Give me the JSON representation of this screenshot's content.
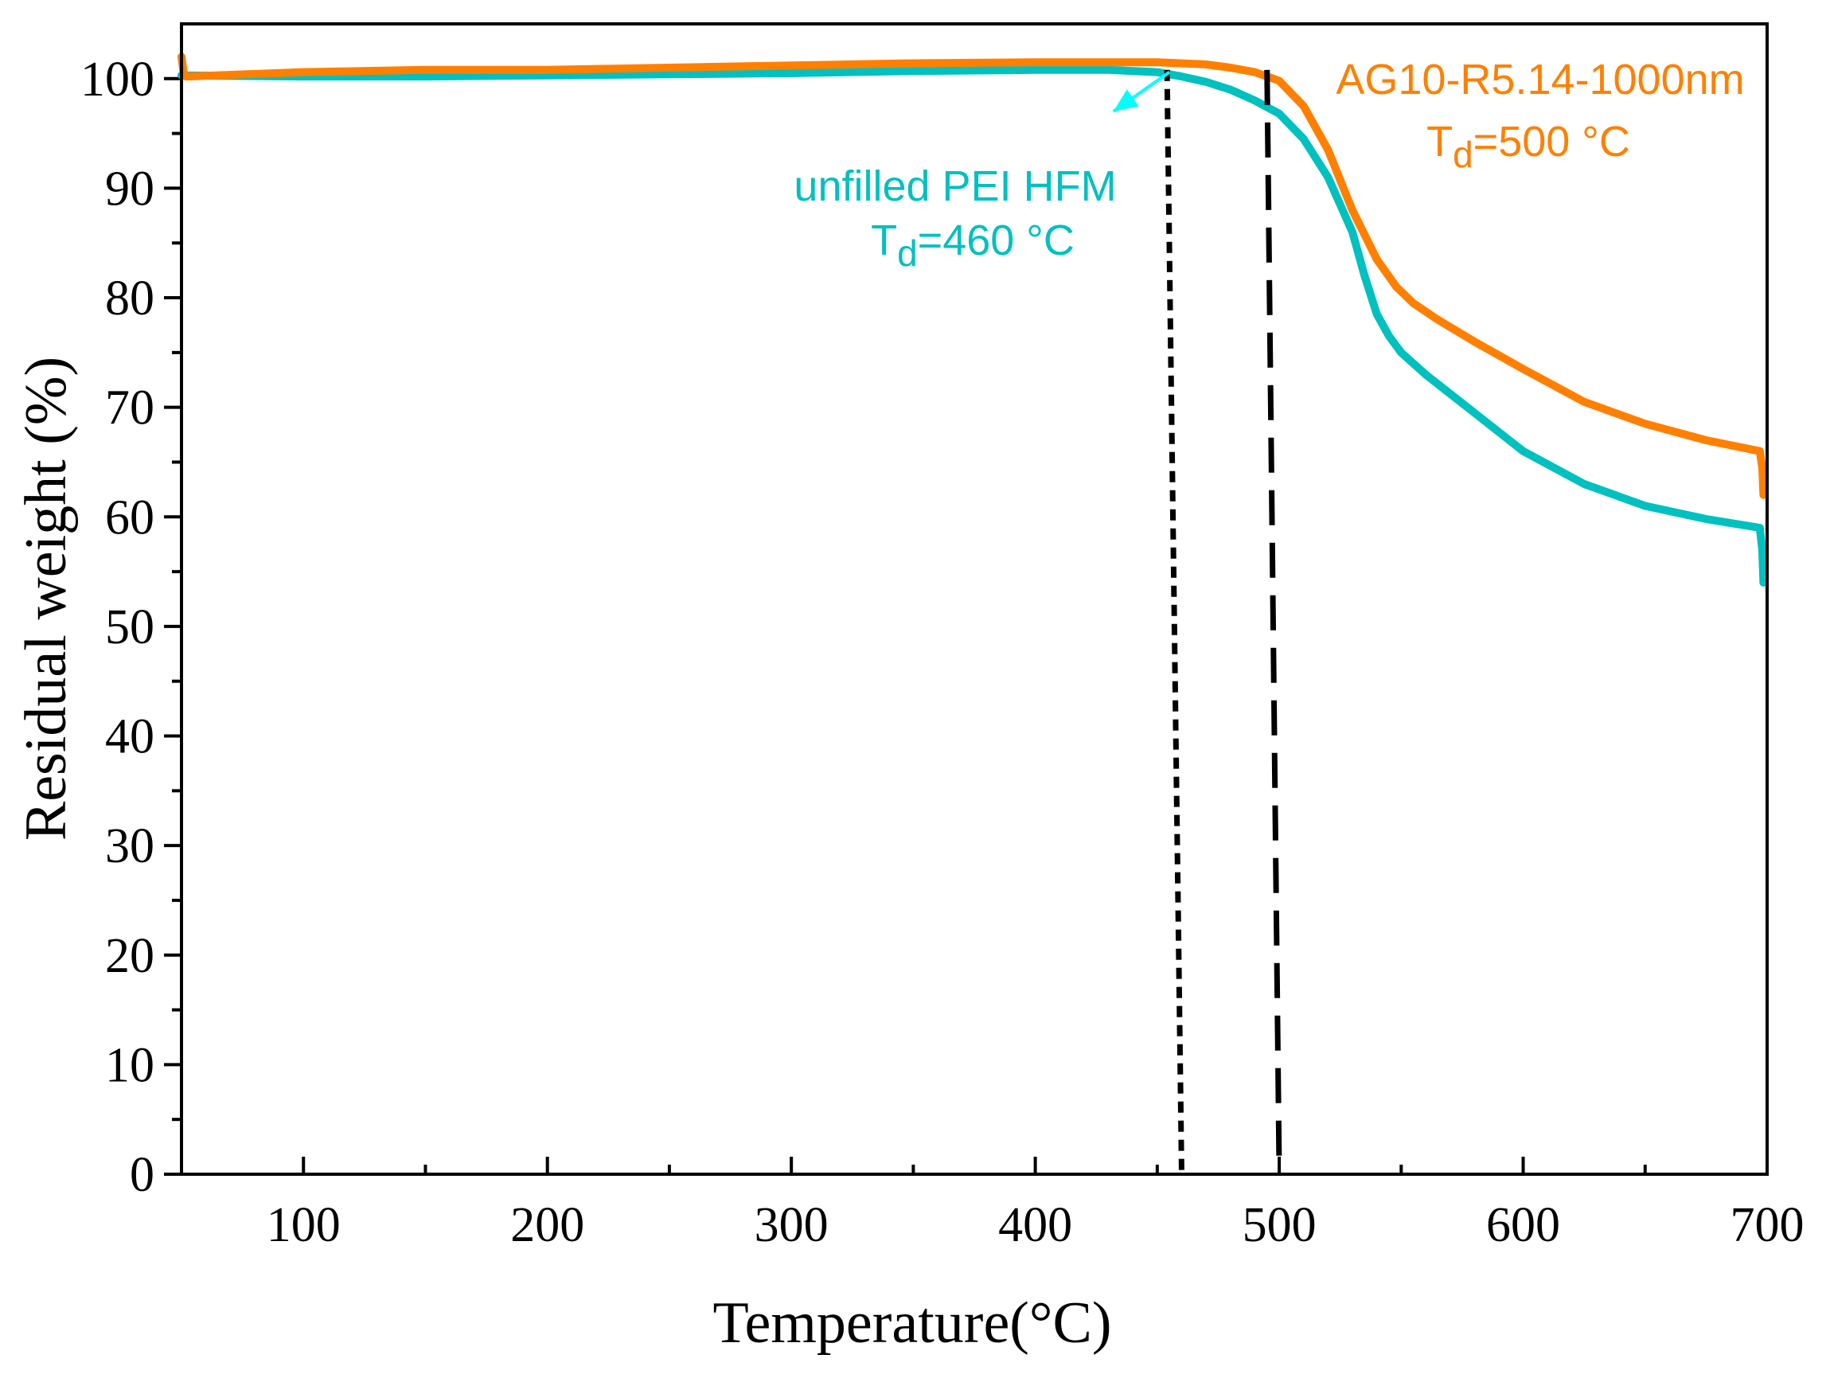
{
  "chart_data": {
    "type": "line",
    "title": "",
    "xlabel": "Temperature(°C)",
    "ylabel": "Residual weight (%)",
    "xlim": [
      50,
      700
    ],
    "ylim": [
      0,
      105
    ],
    "x_ticks": [
      100,
      200,
      300,
      400,
      500,
      600,
      700
    ],
    "x_tick_labels": [
      "100",
      "200",
      "300",
      "400",
      "500",
      "600",
      "700"
    ],
    "y_ticks": [
      0,
      10,
      20,
      30,
      40,
      50,
      60,
      70,
      80,
      90,
      100
    ],
    "y_tick_labels": [
      "0",
      "10",
      "20",
      "30",
      "40",
      "50",
      "60",
      "70",
      "80",
      "90",
      "100"
    ],
    "grid": false,
    "series": [
      {
        "name": "AG10-R5.14-1000nm",
        "color": "#ff8000",
        "x": [
          50,
          51,
          52,
          100,
          150,
          200,
          250,
          300,
          350,
          400,
          450,
          470,
          480,
          490,
          500,
          510,
          520,
          530,
          540,
          548,
          555,
          565,
          580,
          600,
          625,
          650,
          675,
          697,
          698,
          698.5
        ],
        "y": [
          102,
          100.3,
          100.2,
          100.6,
          100.8,
          100.8,
          101.0,
          101.2,
          101.4,
          101.5,
          101.5,
          101.3,
          101.0,
          100.6,
          99.8,
          97.5,
          93.5,
          88,
          83.5,
          81,
          79.5,
          78,
          76,
          73.5,
          70.5,
          68.5,
          67,
          66,
          64.5,
          62
        ]
      },
      {
        "name": "unfilled PEI HFM",
        "color": "#00c0c0",
        "x": [
          50,
          100,
          150,
          200,
          250,
          300,
          350,
          400,
          430,
          450,
          460,
          470,
          480,
          490,
          500,
          510,
          520,
          530,
          535,
          540,
          545,
          550,
          560,
          580,
          600,
          625,
          650,
          675,
          697,
          698,
          698.5
        ],
        "y": [
          100.3,
          100.2,
          100.2,
          100.3,
          100.4,
          100.5,
          100.7,
          100.8,
          100.8,
          100.6,
          100.2,
          99.7,
          99,
          98,
          96.8,
          94.5,
          91,
          86,
          82,
          78.5,
          76.5,
          75,
          73,
          69.5,
          66,
          63,
          61,
          59.8,
          59,
          57,
          54
        ]
      }
    ],
    "markers": [
      {
        "name": "unfilled PEI HFM T_d",
        "style": "dotted",
        "color": "#000000",
        "x_top": 454,
        "x_bottom": 460,
        "y_top": 100.8,
        "y_bottom": 0
      },
      {
        "name": "AG10-R5.14-1000nm T_d",
        "style": "dashed",
        "color": "#000000",
        "x_top": 495,
        "x_bottom": 500,
        "y_top": 100.8,
        "y_bottom": 0
      }
    ],
    "annotations": [
      {
        "series": "unfilled PEI HFM",
        "line1": "unfilled PEI HFM",
        "td_main": "T",
        "td_sub": "d",
        "td_value": "=460 °C",
        "color": "#00c0c0",
        "arrow_from": [
          455,
          100.6
        ],
        "arrow_to": [
          432,
          97
        ]
      },
      {
        "series": "AG10-R5.14-1000nm",
        "line1": "AG10-R5.14-1000nm",
        "td_main": "T",
        "td_sub": "d",
        "td_value": "=500 °C",
        "color": "#ff8000"
      }
    ]
  }
}
